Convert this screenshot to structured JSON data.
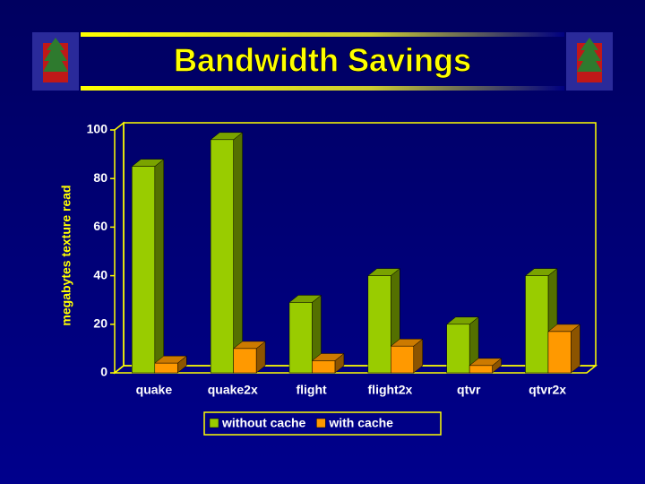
{
  "chart_data": {
    "type": "bar",
    "title": "Bandwidth Savings",
    "ylabel": "megabytes texture read",
    "categories": [
      "quake",
      "quake2x",
      "flight",
      "flight2x",
      "qtvr",
      "qtvr2x"
    ],
    "series": [
      {
        "name": "without cache",
        "color": "#99cc00",
        "values": [
          85,
          96,
          29,
          40,
          20,
          40
        ]
      },
      {
        "name": "with cache",
        "color": "#ff9900",
        "values": [
          4,
          10,
          5,
          11,
          3,
          17
        ]
      }
    ],
    "ylim": [
      0,
      100
    ],
    "yticks": [
      0,
      20,
      40,
      60,
      80,
      100
    ],
    "grid": false,
    "legend": "bottom"
  }
}
